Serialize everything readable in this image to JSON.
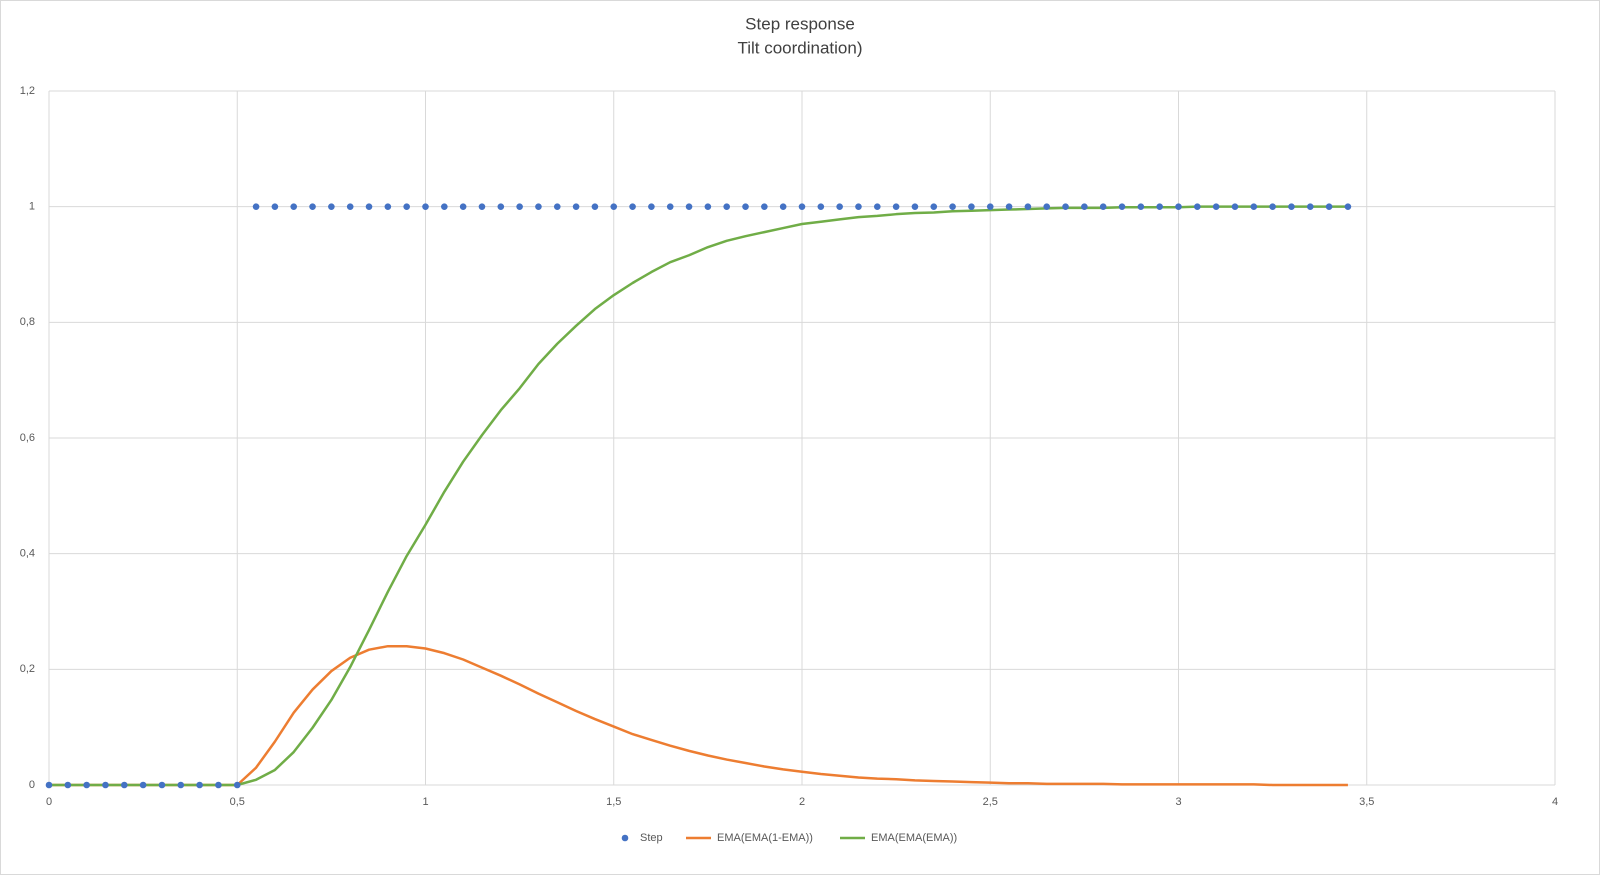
{
  "chart_data": {
    "type": "scatter",
    "title": [
      "Step response",
      "Tilt coordination)"
    ],
    "x": [
      0,
      0.05,
      0.1,
      0.15,
      0.2,
      0.25,
      0.3,
      0.35,
      0.4,
      0.45,
      0.5,
      0.55,
      0.6,
      0.65,
      0.7,
      0.75,
      0.8,
      0.85,
      0.9,
      0.95,
      1,
      1.05,
      1.1,
      1.15,
      1.2,
      1.25,
      1.3,
      1.35,
      1.4,
      1.45,
      1.5,
      1.55,
      1.6,
      1.65,
      1.7,
      1.75,
      1.8,
      1.85,
      1.9,
      1.95,
      2,
      2.05,
      2.1,
      2.15,
      2.2,
      2.25,
      2.3,
      2.35,
      2.4,
      2.45,
      2.5,
      2.55,
      2.6,
      2.65,
      2.7,
      2.75,
      2.8,
      2.85,
      2.9,
      2.95,
      3,
      3.05,
      3.1,
      3.15,
      3.2,
      3.25,
      3.3,
      3.35,
      3.4,
      3.45
    ],
    "series": [
      {
        "name": "Step",
        "color": "#4472c4",
        "style": "markers",
        "values": [
          0,
          0,
          0,
          0,
          0,
          0,
          0,
          0,
          0,
          0,
          0,
          1,
          1,
          1,
          1,
          1,
          1,
          1,
          1,
          1,
          1,
          1,
          1,
          1,
          1,
          1,
          1,
          1,
          1,
          1,
          1,
          1,
          1,
          1,
          1,
          1,
          1,
          1,
          1,
          1,
          1,
          1,
          1,
          1,
          1,
          1,
          1,
          1,
          1,
          1,
          1,
          1,
          1,
          1,
          1,
          1,
          1,
          1,
          1,
          1,
          1,
          1,
          1,
          1,
          1,
          1,
          1,
          1,
          1,
          1
        ]
      },
      {
        "name": "EMA(EMA(1-EMA))",
        "color": "#ed7d31",
        "style": "line",
        "values": [
          0,
          0,
          0,
          0,
          0,
          0,
          0,
          0,
          0,
          0,
          0,
          0.03,
          0.075,
          0.125,
          0.165,
          0.197,
          0.22,
          0.234,
          0.24,
          0.24,
          0.236,
          0.228,
          0.217,
          0.203,
          0.189,
          0.174,
          0.158,
          0.143,
          0.128,
          0.114,
          0.101,
          0.088,
          0.078,
          0.068,
          0.059,
          0.051,
          0.044,
          0.038,
          0.032,
          0.027,
          0.023,
          0.019,
          0.016,
          0.013,
          0.011,
          0.01,
          0.008,
          0.007,
          0.006,
          0.005,
          0.004,
          0.003,
          0.003,
          0.002,
          0.002,
          0.002,
          0.002,
          0.001,
          0.001,
          0.001,
          0.001,
          0.001,
          0.001,
          0.001,
          0.001,
          0,
          0,
          0,
          0,
          0
        ]
      },
      {
        "name": "EMA(EMA(EMA))",
        "color": "#70ad47",
        "style": "line",
        "values": [
          0,
          0,
          0,
          0,
          0,
          0,
          0,
          0,
          0,
          0,
          0,
          0.009,
          0.026,
          0.057,
          0.099,
          0.147,
          0.204,
          0.268,
          0.334,
          0.396,
          0.45,
          0.507,
          0.559,
          0.605,
          0.648,
          0.686,
          0.728,
          0.763,
          0.794,
          0.823,
          0.847,
          0.868,
          0.887,
          0.904,
          0.916,
          0.93,
          0.941,
          0.949,
          0.956,
          0.963,
          0.97,
          0.974,
          0.978,
          0.982,
          0.984,
          0.987,
          0.989,
          0.99,
          0.992,
          0.993,
          0.994,
          0.995,
          0.996,
          0.997,
          0.998,
          0.998,
          0.998,
          0.999,
          0.999,
          0.999,
          0.999,
          1,
          1,
          1,
          1,
          1,
          1,
          1,
          1,
          1
        ]
      }
    ],
    "xlim": [
      0,
      4
    ],
    "xticks": [
      0,
      {
        "value": 0.5,
        "label": "0,5"
      },
      1,
      {
        "value": 1.5,
        "label": "1,5"
      },
      2,
      {
        "value": 2.5,
        "label": "2,5"
      },
      3,
      {
        "value": 3.5,
        "label": "3,5"
      },
      4
    ],
    "ylim": [
      0,
      1.2
    ],
    "yticks": [
      0,
      {
        "value": 0.2,
        "label": "0,2"
      },
      {
        "value": 0.4,
        "label": "0,4"
      },
      {
        "value": 0.6,
        "label": "0,6"
      },
      {
        "value": 0.8,
        "label": "0,8"
      },
      1,
      {
        "value": 1.2,
        "label": "1,2"
      }
    ],
    "grid": true,
    "legend": "bottom"
  }
}
